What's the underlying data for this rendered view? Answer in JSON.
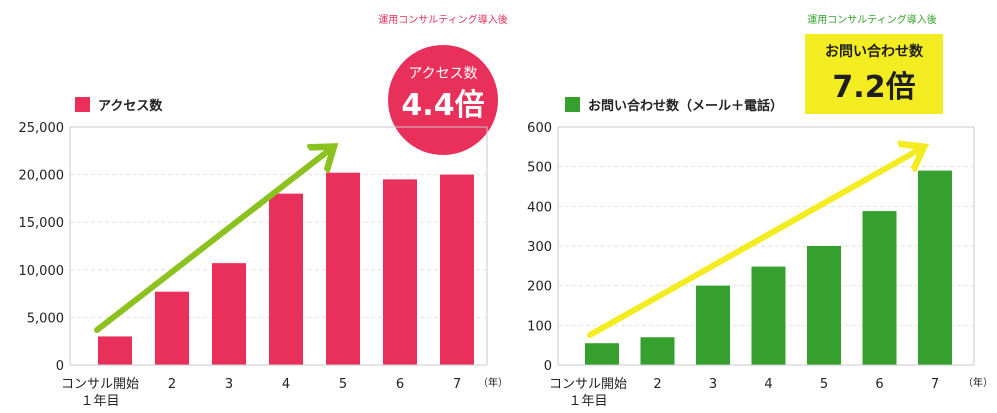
{
  "colors": {
    "access": "#e8305a",
    "inquiries": "#36a02f",
    "arrow_green": "#8cc21f",
    "arrow_yellow": "#f3ec21",
    "badge_text": "#ffffff"
  },
  "chart_data": [
    {
      "type": "bar",
      "legend": "アクセス数",
      "categories": [
        "コンサル開始\n１年目",
        "2",
        "3",
        "4",
        "5",
        "6",
        "7"
      ],
      "x_unit": "（年）",
      "series": [
        {
          "name": "アクセス数",
          "values": [
            3000,
            7700,
            10700,
            18000,
            20200,
            19500,
            20000
          ]
        }
      ],
      "ylim": [
        0,
        25000
      ],
      "yticks": [
        "0",
        "5,000",
        "10,000",
        "15,000",
        "20,000",
        "25,000"
      ],
      "ytick_values": [
        0,
        5000,
        10000,
        15000,
        20000,
        25000
      ],
      "grid": true,
      "annotation": {
        "caption": "運用コンサルティング導入後",
        "label": "アクセス数",
        "value": "4.4倍"
      }
    },
    {
      "type": "bar",
      "legend": "お問い合わせ数（メール＋電話）",
      "categories": [
        "コンサル開始\n１年目",
        "2",
        "3",
        "4",
        "5",
        "6",
        "7"
      ],
      "x_unit": "（年）",
      "series": [
        {
          "name": "お問い合わせ数（メール＋電話）",
          "values": [
            55,
            70,
            200,
            248,
            300,
            388,
            490
          ]
        }
      ],
      "ylim": [
        0,
        600
      ],
      "yticks": [
        "0",
        "100",
        "200",
        "300",
        "400",
        "500",
        "600"
      ],
      "ytick_values": [
        0,
        100,
        200,
        300,
        400,
        500,
        600
      ],
      "grid": true,
      "annotation": {
        "caption": "運用コンサルティング導入後",
        "label": "お問い合わせ数",
        "value": "7.2倍"
      }
    }
  ]
}
